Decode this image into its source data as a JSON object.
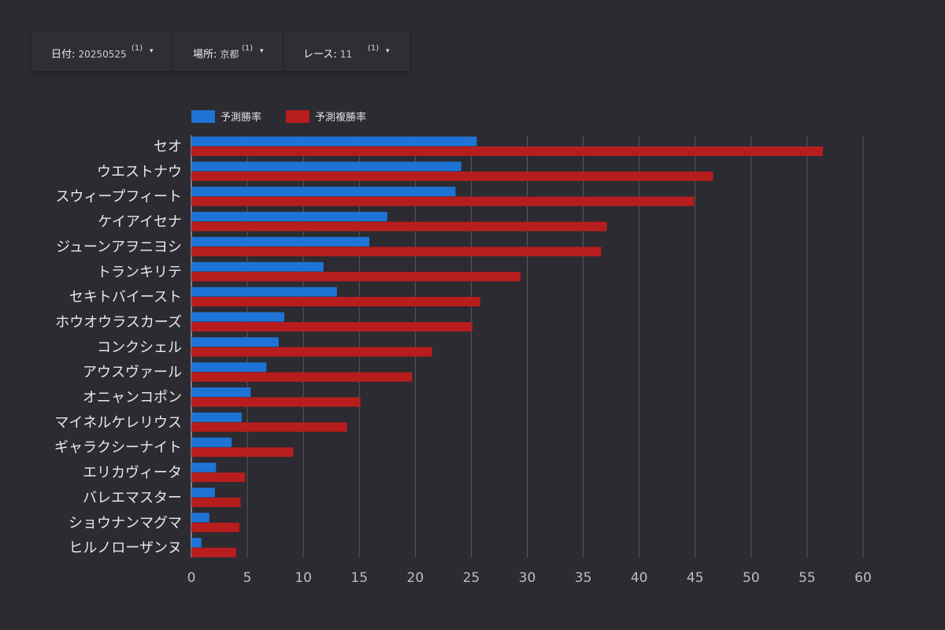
{
  "filters": [
    {
      "label": "日付",
      "value": "20250525",
      "count": "(1)",
      "caret": "▾"
    },
    {
      "label": "場所",
      "value": "京都",
      "count": "(1)",
      "caret": "▾"
    },
    {
      "label": "レース",
      "value": "11",
      "count": "(1)",
      "caret": "▾"
    }
  ],
  "colors": {
    "background": "#2c2b31",
    "grid": "#5a5960",
    "win": "#1e74d6",
    "place": "#b81d1e"
  },
  "chart_data": {
    "type": "bar",
    "orientation": "horizontal",
    "categories": [
      "セオ",
      "ウエストナウ",
      "スウィープフィート",
      "ケイアイセナ",
      "ジューンアヲニヨシ",
      "トランキリテ",
      "セキトバイースト",
      "ホウオウラスカーズ",
      "コンクシェル",
      "アウスヴァール",
      "オニャンコポン",
      "マイネルケレリウス",
      "ギャラクシーナイト",
      "エリカヴィータ",
      "バレエマスター",
      "ショウナンマグマ",
      "ヒルノローザンヌ"
    ],
    "series": [
      {
        "name": "予測勝率",
        "color": "#1e74d6",
        "values": [
          25.5,
          24.1,
          23.6,
          17.5,
          15.9,
          11.8,
          13.0,
          8.3,
          7.8,
          6.7,
          5.3,
          4.5,
          3.6,
          2.2,
          2.1,
          1.6,
          0.9
        ]
      },
      {
        "name": "予測複勝率",
        "color": "#b81d1e",
        "values": [
          56.4,
          46.6,
          44.9,
          37.1,
          36.6,
          29.4,
          25.8,
          25.1,
          21.5,
          19.7,
          15.1,
          13.9,
          9.1,
          4.8,
          4.4,
          4.3,
          4.0
        ]
      }
    ],
    "xlim": [
      0,
      60
    ],
    "xticks": [
      "0",
      "5",
      "10",
      "15",
      "20",
      "25",
      "30",
      "35",
      "40",
      "45",
      "50",
      "55",
      "60"
    ],
    "grid": true,
    "legend_position": "top-left"
  }
}
